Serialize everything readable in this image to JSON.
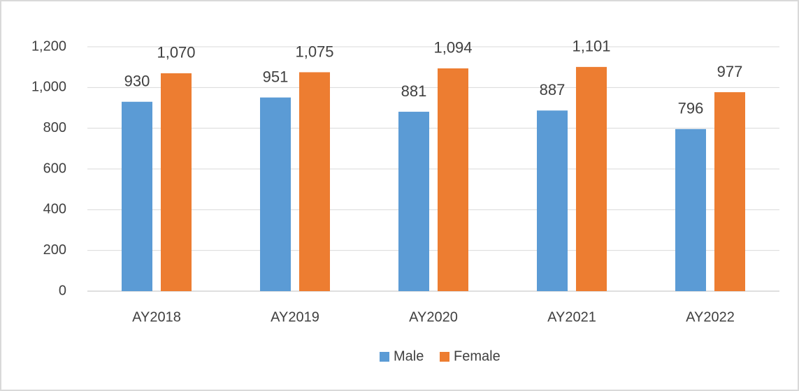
{
  "chart_data": {
    "type": "bar",
    "categories": [
      "AY2018",
      "AY2019",
      "AY2020",
      "AY2021",
      "AY2022"
    ],
    "series": [
      {
        "name": "Male",
        "color": "#5b9bd5",
        "values": [
          930,
          951,
          881,
          887,
          796
        ]
      },
      {
        "name": "Female",
        "color": "#ed7d31",
        "values": [
          1070,
          1075,
          1094,
          1101,
          977
        ],
        "value_labels": [
          "1,070",
          "1,075",
          "1,094",
          "1,101",
          "977"
        ]
      }
    ],
    "ylim": [
      0,
      1200
    ],
    "yticks": [
      0,
      200,
      400,
      600,
      800,
      {
        "value": 1000,
        "label": "1,000"
      },
      {
        "value": 1200,
        "label": "1,200"
      }
    ],
    "grid": true,
    "legend": "bottom"
  }
}
